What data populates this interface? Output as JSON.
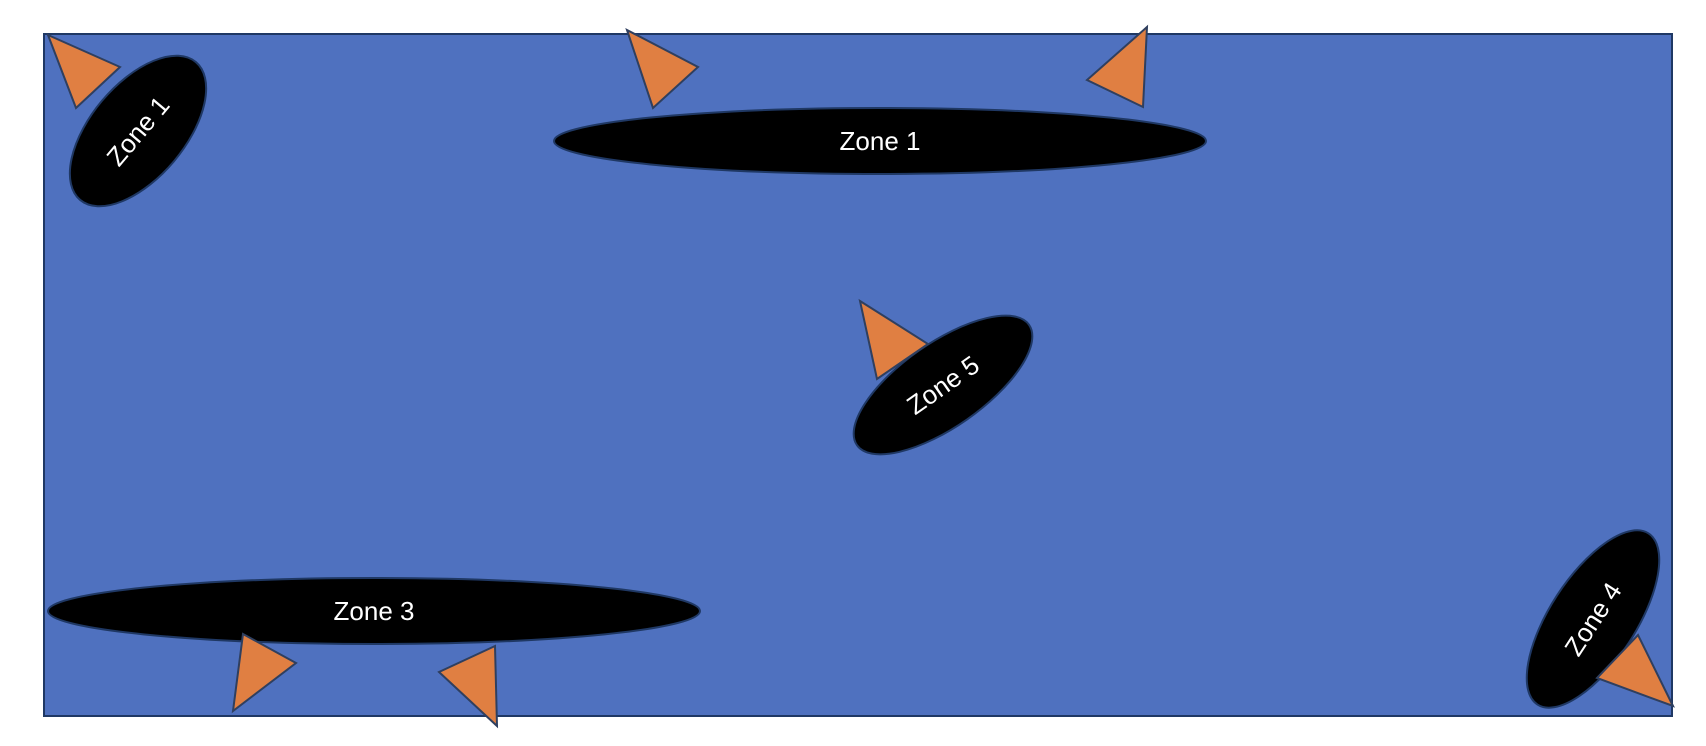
{
  "colors": {
    "background": "#ffffff",
    "field": "#4f71bf",
    "field_border": "#1f3864",
    "zone_fill": "#000000",
    "zone_text": "#ffffff",
    "marker_fill": "#e07f42",
    "marker_stroke": "#2f3f5f"
  },
  "zones": [
    {
      "id": "zone-top-left",
      "label": "Zone 1"
    },
    {
      "id": "zone-top-center",
      "label": "Zone 1"
    },
    {
      "id": "zone-center",
      "label": "Zone 5"
    },
    {
      "id": "zone-bottom-left",
      "label": "Zone 3"
    },
    {
      "id": "zone-bottom-right",
      "label": "Zone 4"
    }
  ],
  "markers": [
    {
      "id": "marker-1",
      "icon": "triangle-marker-icon"
    },
    {
      "id": "marker-2",
      "icon": "triangle-marker-icon"
    },
    {
      "id": "marker-3",
      "icon": "triangle-marker-icon"
    },
    {
      "id": "marker-4",
      "icon": "triangle-marker-icon"
    },
    {
      "id": "marker-5",
      "icon": "triangle-marker-icon"
    },
    {
      "id": "marker-6",
      "icon": "triangle-marker-icon"
    },
    {
      "id": "marker-7",
      "icon": "triangle-marker-icon"
    }
  ]
}
